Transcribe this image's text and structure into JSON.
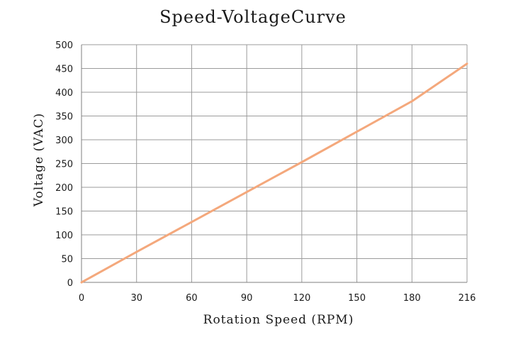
{
  "chart_data": {
    "type": "line",
    "title": "Speed-VoltageCurve",
    "xlabel": "Rotation Speed (RPM)",
    "ylabel": "Voltage (VAC)",
    "x_ticks": [
      "0",
      "30",
      "60",
      "90",
      "120",
      "150",
      "180",
      "216"
    ],
    "y_ticks": [
      "0",
      "50",
      "100",
      "150",
      "200",
      "250",
      "300",
      "350",
      "400",
      "450",
      "500"
    ],
    "ylim": [
      0,
      500
    ],
    "grid": true,
    "legend": "none",
    "series": [
      {
        "x": [
          0,
          30,
          60,
          90,
          120,
          150,
          180,
          216
        ],
        "y": [
          0,
          64,
          127,
          190,
          253,
          317,
          381,
          460
        ],
        "color": "#f4a87c"
      }
    ]
  }
}
